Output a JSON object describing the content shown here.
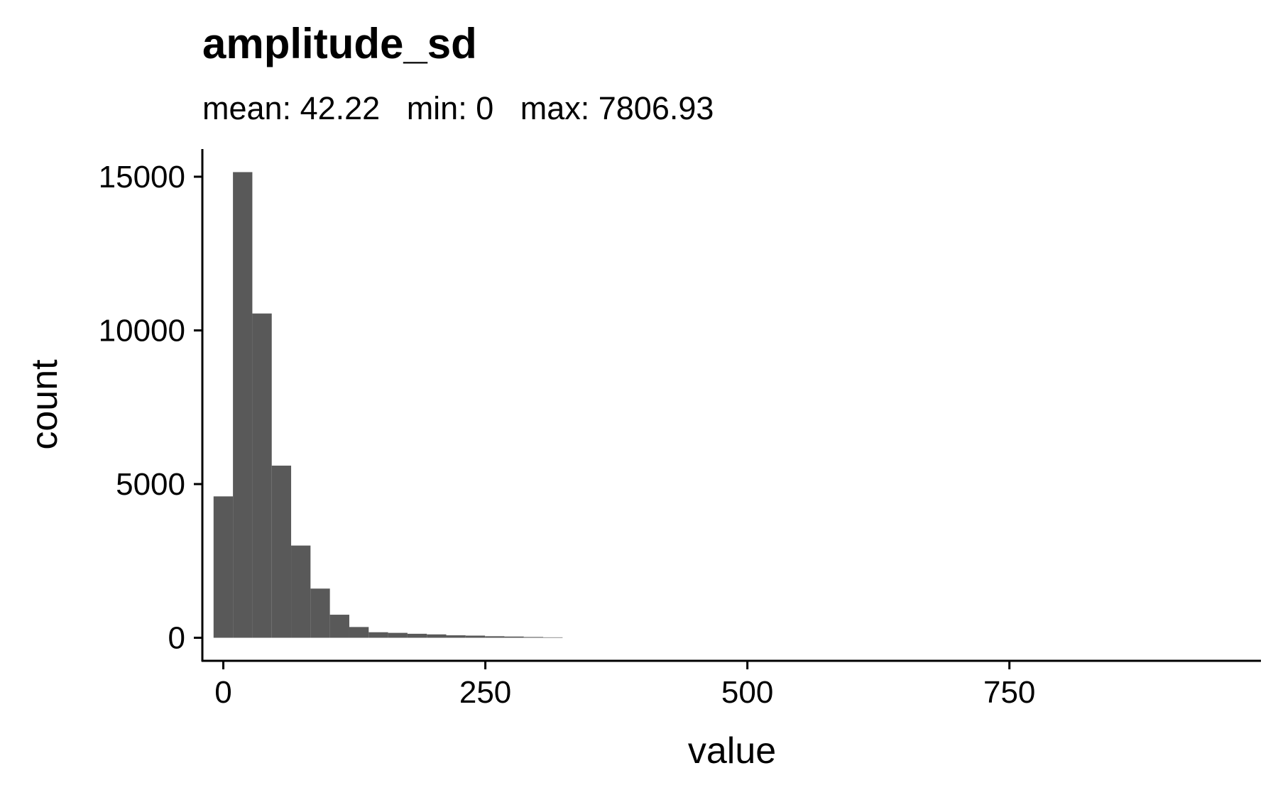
{
  "chart_data": {
    "type": "bar",
    "title": "amplitude_sd",
    "subtitle": "mean: 42.22   min: 0   max: 7806.93",
    "xlabel": "value",
    "ylabel": "count",
    "xlim": [
      -20,
      990
    ],
    "ylim": [
      -750,
      15900
    ],
    "x_ticks": [
      0,
      250,
      500,
      750
    ],
    "y_ticks": [
      0,
      5000,
      10000,
      15000
    ],
    "grid": false,
    "bin_width": 18.5,
    "bins": [
      {
        "x0": -9.3,
        "x1": 9.2,
        "count": 4600
      },
      {
        "x0": 9.2,
        "x1": 27.7,
        "count": 15150
      },
      {
        "x0": 27.7,
        "x1": 46.2,
        "count": 10550
      },
      {
        "x0": 46.2,
        "x1": 64.7,
        "count": 5600
      },
      {
        "x0": 64.7,
        "x1": 83.2,
        "count": 3000
      },
      {
        "x0": 83.2,
        "x1": 101.7,
        "count": 1600
      },
      {
        "x0": 101.7,
        "x1": 120.2,
        "count": 750
      },
      {
        "x0": 120.2,
        "x1": 138.7,
        "count": 350
      },
      {
        "x0": 138.7,
        "x1": 157.2,
        "count": 180
      },
      {
        "x0": 157.2,
        "x1": 175.7,
        "count": 160
      },
      {
        "x0": 175.7,
        "x1": 194.2,
        "count": 130
      },
      {
        "x0": 194.2,
        "x1": 212.7,
        "count": 110
      },
      {
        "x0": 212.7,
        "x1": 231.2,
        "count": 80
      },
      {
        "x0": 231.2,
        "x1": 249.7,
        "count": 70
      },
      {
        "x0": 249.7,
        "x1": 268.2,
        "count": 50
      },
      {
        "x0": 268.2,
        "x1": 286.7,
        "count": 40
      },
      {
        "x0": 286.7,
        "x1": 305.2,
        "count": 25
      },
      {
        "x0": 305.2,
        "x1": 323.7,
        "count": 15
      }
    ],
    "colors": {
      "bar": "#595959",
      "axis": "#000000"
    }
  }
}
